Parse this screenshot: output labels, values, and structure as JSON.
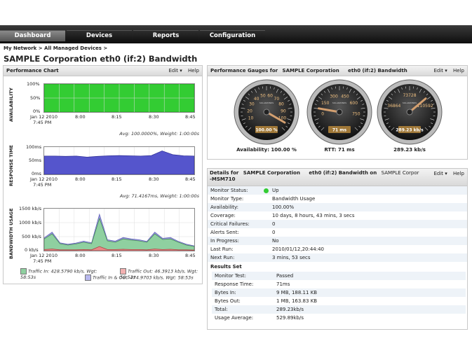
{
  "nav": {
    "tabs": [
      "Dashboard",
      "Devices",
      "Reports",
      "Configuration"
    ],
    "active": "Dashboard"
  },
  "breadcrumb": "My Network > All Managed Devices >",
  "page_title": "SAMPLE Corporation eth0 (if:2) Bandwidth",
  "perf_chart": {
    "title": "Performance Chart",
    "edit": "Edit ▾",
    "help": "Help",
    "availability": {
      "label": "AVAILABILITY",
      "yticks": [
        "100%",
        "50%",
        "0%"
      ],
      "stat": "Avg: 100.0000%, Weight: 1:00:00s",
      "color": "#33cc33"
    },
    "response": {
      "label": "RESPONSE TIME",
      "yticks": [
        "100ms",
        "50ms",
        "0ms"
      ],
      "stat": "Avg: 71.4167ms, Weight: 1:00:00s",
      "color": "#5555cc"
    },
    "bandwidth": {
      "label": "BANDWIDTH USAGE",
      "yticks": [
        "1500 kb/s",
        "1000 kb/s",
        "500 kb/s",
        "0 kb/s"
      ],
      "color_in": "#8fd0a0",
      "color_out": "#e88888",
      "color_total": "#9b9be0"
    },
    "xticks": [
      "Jan 12 2010\n7:45 PM",
      "8:00",
      "8:15",
      "8:30",
      "8:45"
    ],
    "legend": {
      "in": "Traffic In: 428.5790 kb/s, Wgt: 58:53s",
      "out": "Traffic Out: 46.3913 kb/s, Wgt: 58:53s",
      "inout": "Traffic In & Out: 474.9703 kb/s, Wgt: 58:53s"
    }
  },
  "gauges_panel": {
    "title_prefix": "Performance Gauges for",
    "org": "SAMPLE Corporation",
    "iface": "eth0 (if:2) Bandwidth",
    "edit": "Edit ▾",
    "help": "Help",
    "gauges": [
      {
        "caption": "Availability: 100.00 %",
        "readout": "100.00 %",
        "ticks": [
          "10",
          "20",
          "30",
          "40",
          "50",
          "60",
          "70",
          "80",
          "90",
          "100"
        ],
        "brand": "SOLARWINDS"
      },
      {
        "caption": "RTT: 71 ms",
        "readout": "71 ms",
        "ticks": [
          "0",
          "150",
          "300",
          "450",
          "600",
          "750"
        ],
        "brand": "SOLARWINDS"
      },
      {
        "caption": "289.23 kb/s",
        "readout": "289.23 kb/s",
        "ticks": [
          "36864",
          "73728",
          "110592"
        ],
        "brand": "SOLARWINDS"
      }
    ]
  },
  "details": {
    "title_prefix": "Details for",
    "org": "SAMPLE Corporation",
    "iface": "eth0 (if:2) Bandwidth on",
    "org2": "SAMPLE Corpor",
    "device": "-MSM710",
    "edit": "Edit ▾",
    "help": "Help",
    "rows": [
      {
        "k": "Monitor Status:",
        "v": "Up"
      },
      {
        "k": "Monitor Type:",
        "v": "Bandwidth Usage"
      },
      {
        "k": "Availability:",
        "v": "100.00%"
      },
      {
        "k": "Coverage:",
        "v": "10 days, 8 hours, 43 mins, 3 secs"
      },
      {
        "k": "Critical Failures:",
        "v": "0"
      },
      {
        "k": "Alerts Sent:",
        "v": "0"
      },
      {
        "k": "In Progress:",
        "v": "No"
      },
      {
        "k": "Last Run:",
        "v": "2010/01/12,20:44:40"
      },
      {
        "k": "Next Run:",
        "v": "3 mins, 53 secs"
      }
    ],
    "results_set": "Results Set",
    "results": [
      {
        "k": "Monitor Test:",
        "v": "Passed"
      },
      {
        "k": "Response Time:",
        "v": "71ms"
      },
      {
        "k": "Bytes In:",
        "v": "9 MB, 188.11 KB"
      },
      {
        "k": "Bytes Out:",
        "v": "1 MB, 163.83 KB"
      },
      {
        "k": "Total:",
        "v": "289.23kb/s"
      },
      {
        "k": "Usage Average:",
        "v": "529.89kb/s"
      }
    ]
  },
  "chart_data": [
    {
      "type": "area",
      "title": "",
      "ylabel": "AVAILABILITY",
      "ylim": [
        0,
        100
      ],
      "x": [
        "7:45 PM",
        "8:00",
        "8:15",
        "8:30",
        "8:45"
      ],
      "series": [
        {
          "values": [
            100,
            100,
            100,
            100,
            100
          ]
        }
      ]
    },
    {
      "type": "area",
      "ylabel": "RESPONSE TIME",
      "ylim": [
        0,
        100
      ],
      "series": [
        {
          "values": [
            67,
            67,
            66,
            67,
            63,
            66,
            68,
            69,
            68,
            67,
            69,
            86,
            72,
            68,
            67
          ]
        }
      ]
    },
    {
      "type": "area",
      "ylabel": "BANDWIDTH USAGE",
      "ylim": [
        0,
        1500
      ],
      "series": [
        {
          "name": "Traffic In",
          "values": [
            420,
            600,
            250,
            200,
            240,
            300,
            250,
            1150,
            350,
            300,
            420,
            380,
            350,
            300,
            600,
            400,
            420,
            300,
            200,
            150
          ]
        },
        {
          "name": "Traffic Out",
          "values": [
            40,
            60,
            30,
            30,
            30,
            40,
            30,
            150,
            40,
            40,
            50,
            40,
            40,
            30,
            60,
            40,
            50,
            30,
            30,
            20
          ]
        },
        {
          "name": "Traffic In & Out",
          "values": [
            460,
            660,
            280,
            230,
            270,
            340,
            280,
            1300,
            390,
            340,
            470,
            420,
            390,
            330,
            660,
            440,
            470,
            330,
            230,
            170
          ]
        }
      ]
    }
  ]
}
